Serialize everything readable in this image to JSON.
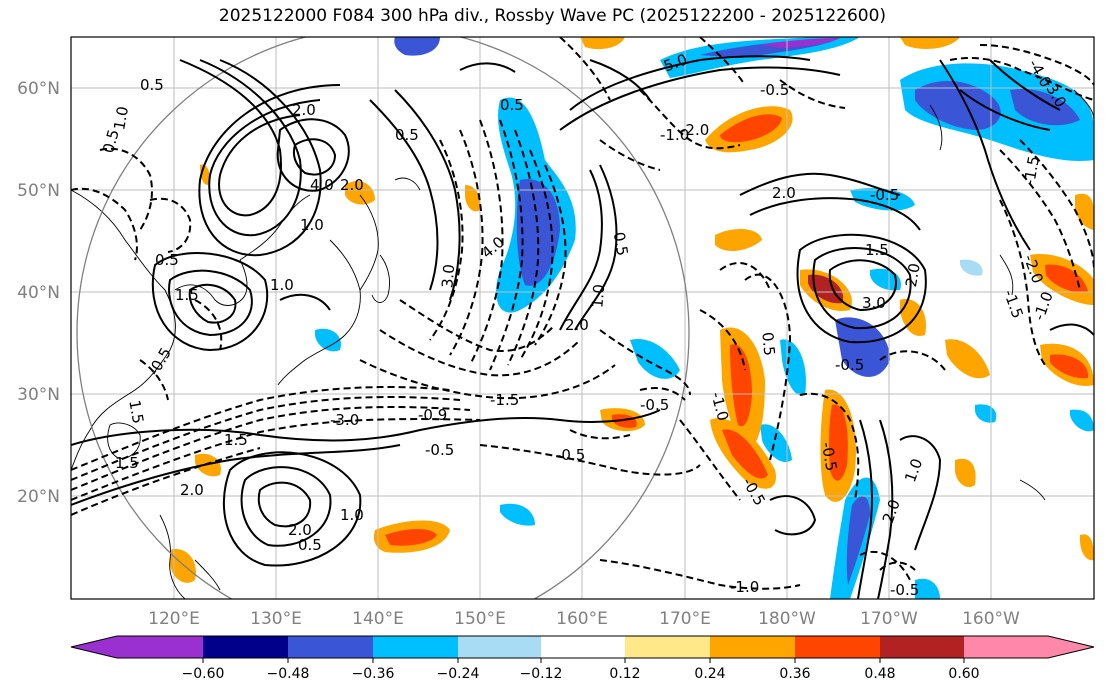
{
  "title": "2025122000 F084 300 hPa div., Rossby Wave PC (2025122200 - 2025122600)",
  "map": {
    "lat_labels": [
      "60°N",
      "50°N",
      "40°N",
      "30°N",
      "20°N"
    ],
    "lon_labels": [
      "120°E",
      "130°E",
      "140°E",
      "150°E",
      "160°E",
      "170°E",
      "180°W",
      "170°W",
      "160°W"
    ]
  },
  "colorbar": {
    "colors": [
      "#9b30d0",
      "#00008b",
      "#3a55d6",
      "#00bfff",
      "#a8dcf5",
      "#ffffff",
      "#ffe88a",
      "#ffa500",
      "#ff4500",
      "#b22222",
      "#ff88aa"
    ],
    "tick_labels": [
      "−0.60",
      "−0.48",
      "−0.36",
      "−0.24",
      "−0.12",
      "0.12",
      "0.24",
      "0.36",
      "0.48",
      "0.60"
    ]
  },
  "contour_labels": [
    "0.5",
    "0.5",
    "2.0",
    "4.0",
    "2.0",
    "0.5",
    "1.0",
    "0.5",
    "3.0",
    "4.0",
    "5.0",
    "2.0",
    "1.0",
    "0.5",
    "1.5",
    "2.0",
    "0.5",
    "1.5",
    "3.0",
    "2.0",
    "1.0",
    "0.5",
    "-0.5",
    "-1.5",
    "-3.0",
    "-0.9",
    "-0.5",
    "-0.5",
    "-0.5",
    "-1.0",
    "-0.5",
    "1.5",
    "2.0",
    "2.0",
    "0.5",
    "1.0",
    "-1.0",
    "-0.5",
    "1.0",
    "1.5",
    "2.0",
    "1.0",
    "-1.0",
    "-0.5",
    "-2.0",
    "-0.5",
    "-0.5",
    "1.5",
    "-1.5",
    "-1.0",
    "-1.5",
    "-2.0",
    "-4.0",
    "-3.0",
    "-0.5"
  ]
}
